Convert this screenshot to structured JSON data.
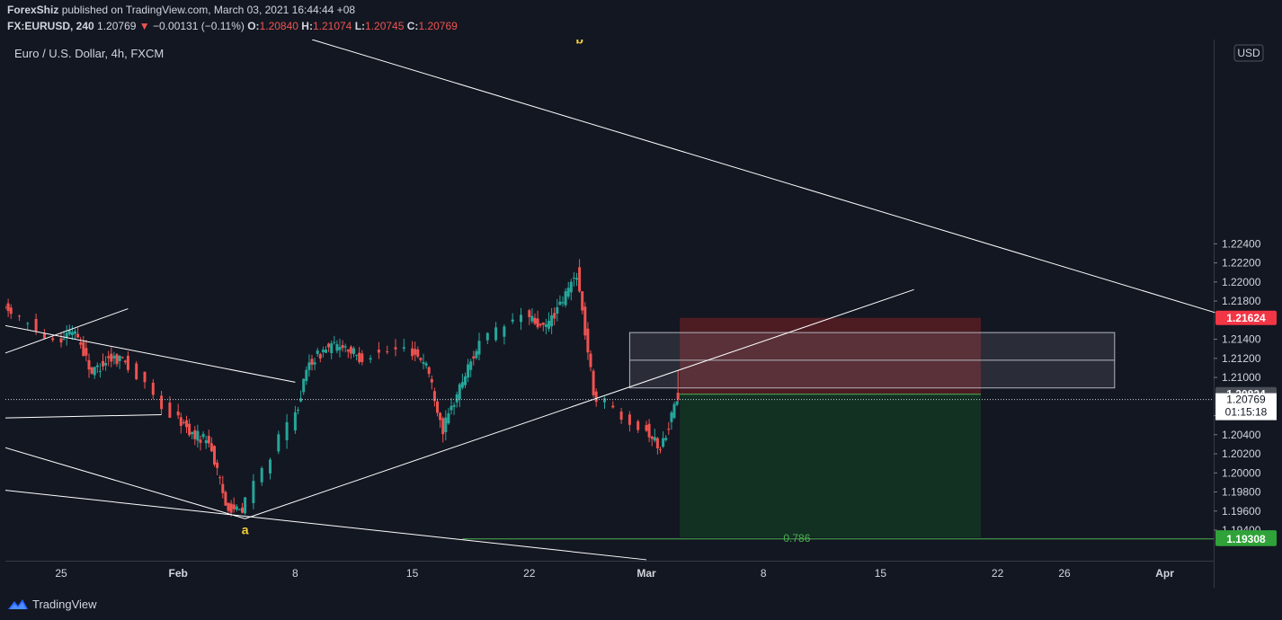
{
  "header": {
    "author": "ForexShiz",
    "published": "published on TradingView.com, March 03, 2021 16:44:44 +08",
    "symbol": "FX:EURUSD, 240",
    "last": "1.20769",
    "change": "−0.00131 (−0.11%)",
    "o_label": "O:",
    "o_value": "1.20840",
    "h_label": "H:",
    "h_value": "1.21074",
    "l_label": "L:",
    "l_value": "1.20745",
    "c_label": "C:",
    "c_value": "1.20769"
  },
  "footer": {
    "brand": "TradingView"
  },
  "colors": {
    "background": "#131722",
    "bull": "#26a69a",
    "bear": "#ef5350",
    "stop_zone": "#5c1e24",
    "target_zone": "#133623",
    "wave_label": "#f7d038",
    "fib_label": "#4caf50"
  },
  "chart_data": {
    "type": "candlestick",
    "title": "Euro / U.S. Dollar, 4h, FXCM",
    "currency_label": "USD",
    "ylim": [
      1.1908,
      1.2454
    ],
    "y_ticks": [
      "1.22400",
      "1.22200",
      "1.22000",
      "1.21800",
      "1.21400",
      "1.21200",
      "1.21000",
      "1.20600",
      "1.20400",
      "1.20200",
      "1.20000",
      "1.19800",
      "1.19600",
      "1.19400"
    ],
    "x_ticks": [
      "25",
      "Feb",
      "8",
      "15",
      "22",
      "Mar",
      "8",
      "15",
      "22",
      "26",
      "Apr"
    ],
    "x_tick_dates": [
      "2021-01-25",
      "2021-02-01",
      "2021-02-08",
      "2021-02-15",
      "2021-02-22",
      "2021-03-01",
      "2021-03-08",
      "2021-03-15",
      "2021-03-22",
      "2021-03-26",
      "2021-04-01"
    ],
    "price_labels": [
      {
        "text": "1.21624",
        "value": 1.21624,
        "color": "#f23645"
      },
      {
        "text": "1.20824",
        "value": 1.20824,
        "color": "#4a4e57"
      },
      {
        "text": "1.19324",
        "value": 1.19324,
        "color": "#2fa33a"
      },
      {
        "text": "1.19308",
        "value": 1.19308,
        "color": "#2fa33a"
      }
    ],
    "last_price_label": {
      "value": "1.20769",
      "countdown": "01:15:18"
    },
    "annotations": [
      {
        "text": "b",
        "date": "2021-02-25",
        "price": 1.245
      },
      {
        "text": "a",
        "date": "2021-02-05",
        "price": 1.1936
      },
      {
        "text": "0.786",
        "date": "2021-03-10",
        "price": 1.1928
      }
    ],
    "last": {
      "open": 1.2084,
      "high": 1.21074,
      "low": 1.20745,
      "close": 1.20769
    },
    "waypoints": [
      [
        "2021-01-20",
        1.21
      ],
      [
        "2021-01-21",
        1.217
      ],
      [
        "2021-01-22",
        1.2172
      ],
      [
        "2021-01-25",
        1.214
      ],
      [
        "2021-01-26",
        1.215
      ],
      [
        "2021-01-27",
        1.2105
      ],
      [
        "2021-01-28",
        1.212
      ],
      [
        "2021-01-29",
        1.212
      ],
      [
        "2021-02-01",
        1.206
      ],
      [
        "2021-02-02",
        1.204
      ],
      [
        "2021-02-03",
        1.2035
      ],
      [
        "2021-02-04",
        1.1967
      ],
      [
        "2021-02-05",
        1.1958
      ],
      [
        "2021-02-08",
        1.205
      ],
      [
        "2021-02-09",
        1.2115
      ],
      [
        "2021-02-10",
        1.213
      ],
      [
        "2021-02-11",
        1.2135
      ],
      [
        "2021-02-12",
        1.212
      ],
      [
        "2021-02-15",
        1.213
      ],
      [
        "2021-02-16",
        1.2115
      ],
      [
        "2021-02-17",
        1.2045
      ],
      [
        "2021-02-18",
        1.209
      ],
      [
        "2021-02-19",
        1.213
      ],
      [
        "2021-02-22",
        1.2165
      ],
      [
        "2021-02-23",
        1.215
      ],
      [
        "2021-02-24",
        1.2175
      ],
      [
        "2021-02-25",
        1.221
      ],
      [
        "2021-02-26",
        1.2085
      ],
      [
        "2021-03-01",
        1.205
      ],
      [
        "2021-03-02",
        1.2025
      ],
      [
        "2021-03-03",
        1.2077
      ]
    ],
    "trend_lines": [
      {
        "from": [
          "2021-01-20",
          1.2115
        ],
        "to": [
          "2021-01-29",
          1.2172
        ]
      },
      {
        "from": [
          "2021-01-20",
          1.216
        ],
        "to": [
          "2021-02-08",
          1.2095
        ]
      },
      {
        "from": [
          "2021-01-20",
          1.2057
        ],
        "to": [
          "2021-01-31",
          1.2061
        ]
      },
      {
        "from": [
          "2021-01-20",
          1.2035
        ],
        "to": [
          "2021-02-05",
          1.1952
        ]
      },
      {
        "from": [
          "2021-01-20",
          1.1985
        ],
        "to": [
          "2021-03-01",
          1.1909
        ]
      },
      {
        "from": [
          "2021-02-05",
          1.1952
        ],
        "to": [
          "2021-03-17",
          1.2192
        ]
      },
      {
        "from": [
          "2021-02-09",
          1.2454
        ],
        "to": [
          "2021-04-04",
          1.2168
        ]
      }
    ],
    "fib_level": {
      "ratio": "0.786",
      "price": 1.19308,
      "from": "2021-02-18",
      "to": "2021-04-04"
    },
    "position": {
      "entry": 1.20824,
      "stop": 1.21624,
      "target": 1.19324,
      "from": "2021-03-03",
      "to": "2021-03-21"
    },
    "zone_box": {
      "from": "2021-02-28",
      "to": "2021-03-29",
      "high": 1.2147,
      "low": 1.2089,
      "mid": 1.2118
    }
  }
}
